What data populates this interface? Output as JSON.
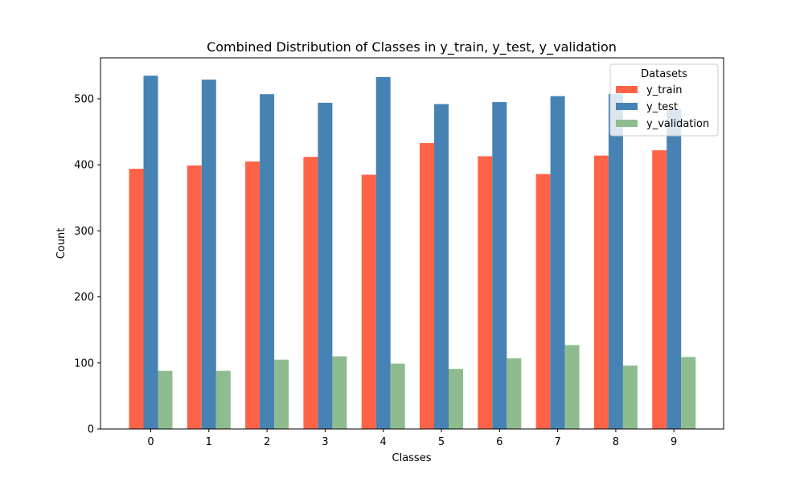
{
  "chart_data": {
    "type": "bar",
    "title": "Combined Distribution of Classes in y_train, y_test, y_validation",
    "xlabel": "Classes",
    "ylabel": "Count",
    "categories": [
      "0",
      "1",
      "2",
      "3",
      "4",
      "5",
      "6",
      "7",
      "8",
      "9"
    ],
    "yticks": [
      0,
      100,
      200,
      300,
      400,
      500
    ],
    "ylim": [
      0,
      562
    ],
    "grid": false,
    "legend": {
      "title": "Datasets",
      "placement": "top-right"
    },
    "series": [
      {
        "name": "y_train",
        "color": "#FF6347",
        "values": [
          394,
          399,
          405,
          412,
          385,
          433,
          413,
          386,
          414,
          422
        ]
      },
      {
        "name": "y_test",
        "color": "#4682B4",
        "values": [
          535,
          529,
          507,
          494,
          533,
          492,
          495,
          504,
          507,
          484
        ]
      },
      {
        "name": "y_validation",
        "color": "#8FBC8F",
        "values": [
          88,
          88,
          105,
          110,
          99,
          91,
          107,
          127,
          96,
          109
        ]
      }
    ]
  }
}
